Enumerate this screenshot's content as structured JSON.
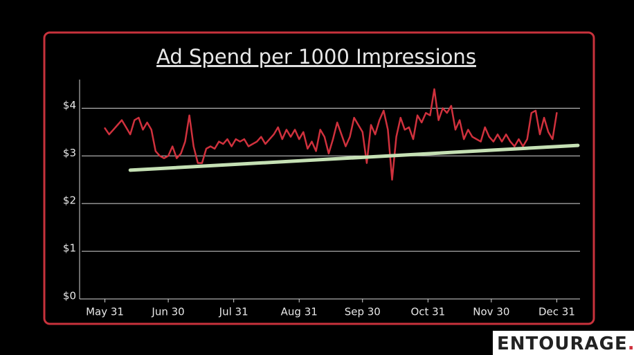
{
  "chart_data": {
    "type": "line",
    "title": "Ad Spend per 1000 Impressions",
    "series": [
      {
        "color": "#d0313d",
        "width": 2.5,
        "x": [
          0,
          2,
          4,
          6,
          8,
          10,
          12,
          14,
          16,
          18,
          20,
          22,
          24,
          26,
          28,
          30,
          32,
          34,
          36,
          38,
          40,
          42,
          44,
          46,
          48,
          50,
          52,
          54,
          56,
          58,
          60,
          62,
          64,
          66,
          68,
          70,
          72,
          74,
          76,
          78,
          80,
          82,
          84,
          86,
          88,
          90,
          92,
          94,
          96,
          98,
          100,
          102,
          104,
          106,
          108,
          110,
          112,
          114,
          116,
          118,
          120,
          122,
          124,
          126,
          128,
          130,
          132,
          134,
          136,
          138,
          140,
          142,
          144,
          146,
          148,
          150,
          152,
          154,
          156,
          158,
          160,
          162,
          164,
          166,
          168,
          170,
          172,
          174,
          176,
          178,
          180,
          182,
          184,
          186,
          188,
          190,
          192,
          194,
          196,
          198,
          200,
          202,
          204,
          206,
          208,
          210,
          212,
          214
        ],
        "values": [
          3.58,
          3.45,
          3.55,
          3.65,
          3.75,
          3.6,
          3.45,
          3.75,
          3.8,
          3.55,
          3.7,
          3.55,
          3.1,
          3.0,
          2.95,
          3.0,
          3.2,
          2.95,
          3.05,
          3.3,
          3.85,
          3.2,
          2.85,
          2.85,
          3.15,
          3.2,
          3.15,
          3.3,
          3.25,
          3.35,
          3.2,
          3.35,
          3.3,
          3.35,
          3.2,
          3.25,
          3.3,
          3.4,
          3.25,
          3.35,
          3.45,
          3.6,
          3.35,
          3.55,
          3.4,
          3.55,
          3.35,
          3.5,
          3.15,
          3.3,
          3.1,
          3.55,
          3.4,
          3.05,
          3.35,
          3.7,
          3.45,
          3.2,
          3.4,
          3.8,
          3.65,
          3.5,
          2.85,
          3.65,
          3.45,
          3.75,
          3.95,
          3.55,
          2.5,
          3.4,
          3.8,
          3.55,
          3.6,
          3.35,
          3.85,
          3.7,
          3.9,
          3.85,
          4.4,
          3.75,
          4.0,
          3.9,
          4.05,
          3.55,
          3.75,
          3.35,
          3.55,
          3.4,
          3.35,
          3.3,
          3.6,
          3.4,
          3.3,
          3.45,
          3.3,
          3.45,
          3.3,
          3.2,
          3.35,
          3.2,
          3.35,
          3.9,
          3.95,
          3.45,
          3.8,
          3.5,
          3.35,
          3.9
        ]
      },
      {
        "color": "#c5e0b4",
        "width": 5,
        "x": [
          12,
          224
        ],
        "values": [
          2.7,
          3.22
        ]
      }
    ],
    "xlim": [
      -11,
      225
    ],
    "xticks": [
      {
        "value": 0,
        "label": "May 31"
      },
      {
        "value": 30,
        "label": "Jun 30"
      },
      {
        "value": 61,
        "label": "Jul 31"
      },
      {
        "value": 92,
        "label": "Aug 31"
      },
      {
        "value": 122,
        "label": "Sep 30"
      },
      {
        "value": 153,
        "label": "Oct 31"
      },
      {
        "value": 183,
        "label": "Nov 30"
      },
      {
        "value": 214,
        "label": "Dec 31"
      }
    ],
    "ylim": [
      0,
      4.6
    ],
    "yticks": [
      {
        "value": 0,
        "label": "$0"
      },
      {
        "value": 1,
        "label": "$1"
      },
      {
        "value": 2,
        "label": "$2"
      },
      {
        "value": 3,
        "label": "$3"
      },
      {
        "value": 4,
        "label": "$4"
      }
    ],
    "grid": true
  },
  "logo": {
    "text": "ENTOURAGE",
    "dot": "."
  }
}
